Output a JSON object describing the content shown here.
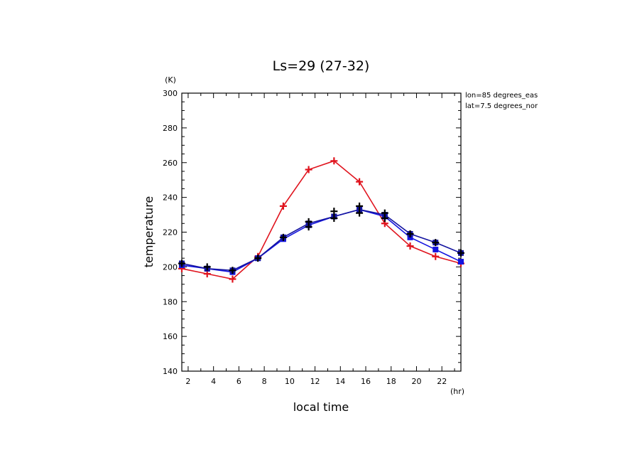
{
  "chart_data": {
    "type": "line",
    "title": "Ls=29 (27-32)",
    "xlabel": "local time",
    "ylabel": "temperature",
    "x_unit": "(hr)",
    "y_unit": "(K)",
    "annotations": [
      "lon=85 degrees_eas",
      "lat=7.5 degrees_nor"
    ],
    "xlim": [
      1.5,
      23.5
    ],
    "ylim": [
      140,
      300
    ],
    "xticks": [
      2,
      4,
      6,
      8,
      10,
      12,
      14,
      16,
      18,
      20,
      22
    ],
    "yticks": [
      140,
      160,
      180,
      200,
      220,
      240,
      260,
      280,
      300
    ],
    "grid": false,
    "series": [
      {
        "color": "#e0141e",
        "marker": "plus",
        "x": [
          1.5,
          3.5,
          5.5,
          7.5,
          9.5,
          11.5,
          13.5,
          15.5,
          17.5,
          19.5,
          21.5,
          23.5
        ],
        "values": [
          199,
          196,
          193,
          206,
          235,
          256,
          261,
          249,
          225,
          212,
          206,
          202
        ]
      },
      {
        "color": "#1414e0",
        "marker": "square",
        "x": [
          1.5,
          3.5,
          5.5,
          7.5,
          9.5,
          11.5,
          13.5,
          15.5,
          17.5,
          19.5,
          21.5,
          23.5
        ],
        "values": [
          201,
          199,
          197,
          205,
          216,
          224,
          229,
          233,
          229,
          217,
          210,
          203
        ]
      },
      {
        "color": "#1414a0",
        "marker": "square",
        "x": [
          1.5,
          3.5,
          5.5,
          7.5,
          9.5,
          11.5,
          13.5,
          15.5,
          17.5,
          19.5,
          21.5,
          23.5
        ],
        "values": [
          202,
          199,
          198,
          205,
          217,
          225,
          229,
          233,
          230,
          219,
          214,
          208
        ]
      },
      {
        "color": "#000000",
        "marker": "plus",
        "x": [
          1.5,
          3.5,
          5.5,
          7.5,
          9.5,
          11.5,
          11.5,
          13.5,
          13.5,
          15.5,
          15.5,
          17.5,
          17.5,
          19.5,
          21.5,
          23.5
        ],
        "values": [
          202,
          200,
          198,
          205,
          217,
          223,
          226,
          228,
          232,
          231,
          235,
          228,
          231,
          219,
          214,
          208
        ]
      }
    ]
  }
}
